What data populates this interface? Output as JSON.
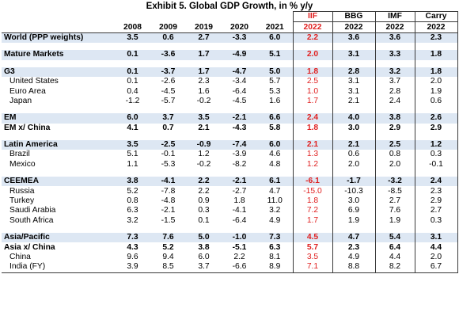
{
  "title": "Exhibit 5. Global GDP Growth, in % y/y",
  "headers": {
    "years": [
      "2008",
      "2009",
      "2019",
      "2020",
      "2021"
    ],
    "iif_top": "IIF",
    "iif_year": "2022",
    "bbg_top": "BBG",
    "bbg_year": "2022",
    "imf_top": "IMF",
    "imf_year": "2022",
    "carry_top": "Carry",
    "carry_year": "2022"
  },
  "rows": [
    {
      "label": "World (PPP weights)",
      "vals": [
        "3.5",
        "0.6",
        "2.7",
        "-3.3",
        "6.0",
        "2.2",
        "3.6",
        "3.6",
        "2.3"
      ]
    },
    {
      "label": "Mature Markets",
      "vals": [
        "0.1",
        "-3.6",
        "1.7",
        "-4.9",
        "5.1",
        "2.0",
        "3.1",
        "3.3",
        "1.8"
      ]
    },
    {
      "label": "G3",
      "vals": [
        "0.1",
        "-3.7",
        "1.7",
        "-4.7",
        "5.0",
        "1.8",
        "2.8",
        "3.2",
        "1.8"
      ]
    },
    {
      "label": "United States",
      "vals": [
        "0.1",
        "-2.6",
        "2.3",
        "-3.4",
        "5.7",
        "2.5",
        "3.1",
        "3.7",
        "2.0"
      ]
    },
    {
      "label": "Euro Area",
      "vals": [
        "0.4",
        "-4.5",
        "1.6",
        "-6.4",
        "5.3",
        "1.0",
        "3.1",
        "2.8",
        "1.9"
      ]
    },
    {
      "label": "Japan",
      "vals": [
        "-1.2",
        "-5.7",
        "-0.2",
        "-4.5",
        "1.6",
        "1.7",
        "2.1",
        "2.4",
        "0.6"
      ]
    },
    {
      "label": "EM",
      "vals": [
        "6.0",
        "3.7",
        "3.5",
        "-2.1",
        "6.6",
        "2.4",
        "4.0",
        "3.8",
        "2.6"
      ]
    },
    {
      "label": "EM x/ China",
      "vals": [
        "4.1",
        "0.7",
        "2.1",
        "-4.3",
        "5.8",
        "1.8",
        "3.0",
        "2.9",
        "2.9"
      ]
    },
    {
      "label": "Latin America",
      "vals": [
        "3.5",
        "-2.5",
        "-0.9",
        "-7.4",
        "6.0",
        "2.1",
        "2.1",
        "2.5",
        "1.2"
      ]
    },
    {
      "label": "Brazil",
      "vals": [
        "5.1",
        "-0.1",
        "1.2",
        "-3.9",
        "4.6",
        "1.3",
        "0.6",
        "0.8",
        "0.3"
      ]
    },
    {
      "label": "Mexico",
      "vals": [
        "1.1",
        "-5.3",
        "-0.2",
        "-8.2",
        "4.8",
        "1.2",
        "2.0",
        "2.0",
        "-0.1"
      ]
    },
    {
      "label": "CEEMEA",
      "vals": [
        "3.8",
        "-4.1",
        "2.2",
        "-2.1",
        "6.1",
        "-6.1",
        "-1.7",
        "-3.2",
        "2.4"
      ]
    },
    {
      "label": "Russia",
      "vals": [
        "5.2",
        "-7.8",
        "2.2",
        "-2.7",
        "4.7",
        "-15.0",
        "-10.3",
        "-8.5",
        "2.3"
      ]
    },
    {
      "label": "Turkey",
      "vals": [
        "0.8",
        "-4.8",
        "0.9",
        "1.8",
        "11.0",
        "1.8",
        "3.0",
        "2.7",
        "2.9"
      ]
    },
    {
      "label": "Saudi Arabia",
      "vals": [
        "6.3",
        "-2.1",
        "0.3",
        "-4.1",
        "3.2",
        "7.2",
        "6.9",
        "7.6",
        "2.7"
      ]
    },
    {
      "label": "South Africa",
      "vals": [
        "3.2",
        "-1.5",
        "0.1",
        "-6.4",
        "4.9",
        "1.7",
        "1.9",
        "1.9",
        "0.3"
      ]
    },
    {
      "label": "Asia/Pacific",
      "vals": [
        "7.3",
        "7.6",
        "5.0",
        "-1.0",
        "7.3",
        "4.5",
        "4.7",
        "5.4",
        "3.1"
      ]
    },
    {
      "label": "Asia x/ China",
      "vals": [
        "4.3",
        "5.2",
        "3.8",
        "-5.1",
        "6.3",
        "5.7",
        "2.3",
        "6.4",
        "4.4"
      ]
    },
    {
      "label": "China",
      "vals": [
        "9.6",
        "9.4",
        "6.0",
        "2.2",
        "8.1",
        "3.5",
        "4.9",
        "4.4",
        "2.0"
      ]
    },
    {
      "label": "India (FY)",
      "vals": [
        "3.9",
        "8.5",
        "3.7",
        "-6.6",
        "8.9",
        "7.1",
        "8.8",
        "8.2",
        "6.7"
      ]
    }
  ],
  "colors": {
    "iif_text": "#e02020",
    "group_band": "#dde7f3"
  }
}
